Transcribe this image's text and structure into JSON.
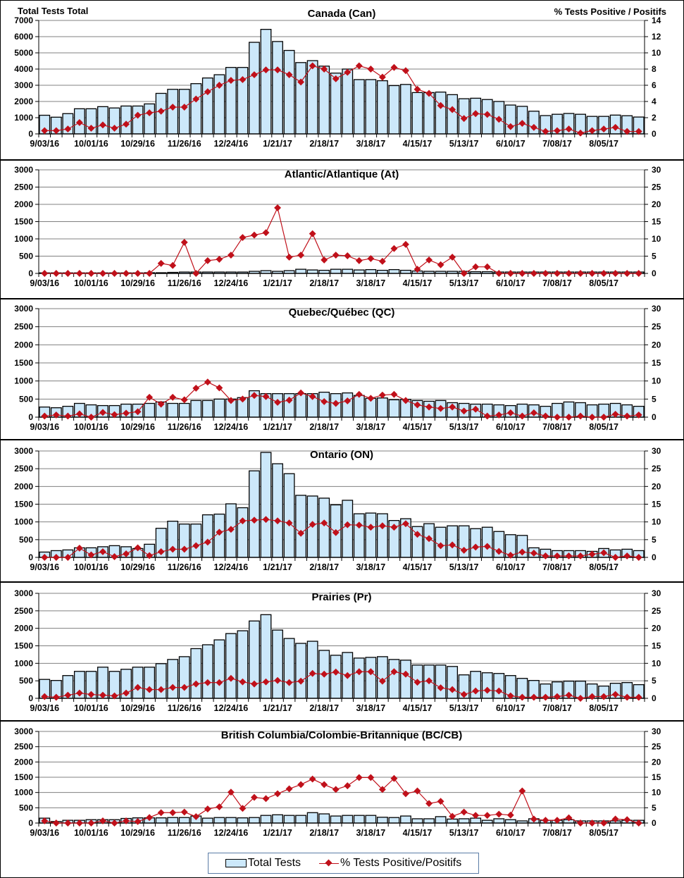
{
  "legend": {
    "bars_label": "Total Tests",
    "line_label": "% Tests Positive/Positifs"
  },
  "colors": {
    "bar_fill": "#cce8fa",
    "line": "#c0101a",
    "grid": "#808080"
  },
  "chart_data": [
    {
      "type": "bar+line",
      "title": "Canada (Can)",
      "ylabel": "Total Tests  Total",
      "y2label": "% Tests  Positive  / Positifs",
      "ylim": [
        0,
        7000
      ],
      "y2lim": [
        0,
        14
      ],
      "yticks": [
        0,
        1000,
        2000,
        3000,
        4000,
        5000,
        6000,
        7000
      ],
      "y2ticks": [
        0,
        2,
        4,
        6,
        8,
        10,
        12,
        14
      ],
      "xtick_labels": [
        "9/03/16",
        "10/01/16",
        "10/29/16",
        "11/26/16",
        "12/24/16",
        "1/21/17",
        "2/18/17",
        "3/18/17",
        "4/15/17",
        "5/13/17",
        "6/10/17",
        "7/08/17",
        "8/05/17"
      ],
      "grid": true,
      "series": [
        {
          "name": "Total Tests",
          "axis": "left",
          "values": [
            1150,
            1030,
            1250,
            1550,
            1550,
            1680,
            1600,
            1720,
            1720,
            1850,
            2500,
            2750,
            2750,
            3100,
            3450,
            3650,
            4100,
            4100,
            5650,
            6450,
            5700,
            5150,
            4400,
            4520,
            4180,
            3750,
            4000,
            3350,
            3350,
            3280,
            2980,
            3050,
            2550,
            2550,
            2580,
            2420,
            2170,
            2200,
            2120,
            2000,
            1780,
            1700,
            1400,
            1130,
            1210,
            1260,
            1210,
            1080,
            1080,
            1160,
            1120,
            1040
          ]
        },
        {
          "name": "% Tests Positive/Positifs",
          "axis": "right",
          "values": [
            0.4,
            0.4,
            0.6,
            1.4,
            0.7,
            1.1,
            0.7,
            1.2,
            2.3,
            2.6,
            2.8,
            3.3,
            3.3,
            4.3,
            5.2,
            6.0,
            6.6,
            6.7,
            7.3,
            7.9,
            7.9,
            7.3,
            6.4,
            8.4,
            8.0,
            6.8,
            7.6,
            8.4,
            8.0,
            7.0,
            8.2,
            7.8,
            5.5,
            5.0,
            3.5,
            3.0,
            1.9,
            2.5,
            2.4,
            1.8,
            0.9,
            1.3,
            0.8,
            0.3,
            0.4,
            0.6,
            0.1,
            0.4,
            0.6,
            0.8,
            0.3,
            0.3
          ]
        }
      ]
    },
    {
      "type": "bar+line",
      "title": "Atlantic/Atlantique  (At)",
      "ylim": [
        0,
        3000
      ],
      "y2lim": [
        0,
        30
      ],
      "yticks": [
        0,
        500,
        1000,
        1500,
        2000,
        2500,
        3000
      ],
      "y2ticks": [
        0,
        5,
        10,
        15,
        20,
        25,
        30
      ],
      "xtick_labels": [
        "9/03/16",
        "10/01/16",
        "10/29/16",
        "11/26/16",
        "12/24/16",
        "1/21/17",
        "2/18/17",
        "3/18/17",
        "4/15/17",
        "5/13/17",
        "6/10/17",
        "7/08/17",
        "8/05/17"
      ],
      "grid": true,
      "series": [
        {
          "name": "Total Tests",
          "axis": "left",
          "values": [
            15,
            15,
            15,
            15,
            15,
            15,
            15,
            15,
            15,
            20,
            20,
            30,
            40,
            40,
            40,
            40,
            40,
            40,
            60,
            80,
            60,
            80,
            120,
            100,
            90,
            120,
            120,
            100,
            110,
            90,
            110,
            90,
            70,
            60,
            60,
            60,
            60,
            50,
            50,
            40,
            40,
            40,
            40,
            40,
            40,
            40,
            40,
            40,
            40,
            40,
            40,
            40
          ]
        },
        {
          "name": "% Tests Positive/Positifs",
          "axis": "right",
          "values": [
            0,
            0,
            0,
            0,
            0,
            0,
            0,
            0,
            0,
            0,
            2.9,
            2.3,
            9.0,
            0,
            3.7,
            4.1,
            5.3,
            10.4,
            11.1,
            11.8,
            19.0,
            4.7,
            5.3,
            11.5,
            3.9,
            5.3,
            5.1,
            3.7,
            4.3,
            3.5,
            7.2,
            8.4,
            1.2,
            3.9,
            2.5,
            4.7,
            0,
            1.9,
            1.9,
            0,
            0,
            0,
            0,
            0,
            0,
            0,
            0,
            0,
            0,
            0,
            0,
            0
          ]
        }
      ]
    },
    {
      "type": "bar+line",
      "title": "Quebec/Québec (QC)",
      "ylim": [
        0,
        3000
      ],
      "y2lim": [
        0,
        30
      ],
      "yticks": [
        0,
        500,
        1000,
        1500,
        2000,
        2500,
        3000
      ],
      "y2ticks": [
        0,
        5,
        10,
        15,
        20,
        25,
        30
      ],
      "xtick_labels": [
        "9/03/16",
        "10/01/16",
        "10/29/16",
        "11/26/16",
        "12/24/16",
        "1/21/17",
        "2/18/17",
        "3/18/17",
        "4/15/17",
        "5/13/17",
        "6/10/17",
        "7/08/17",
        "8/05/17"
      ],
      "grid": true,
      "series": [
        {
          "name": "Total Tests",
          "axis": "left",
          "values": [
            280,
            260,
            300,
            380,
            340,
            320,
            320,
            360,
            360,
            380,
            420,
            380,
            380,
            460,
            460,
            500,
            500,
            540,
            730,
            650,
            650,
            650,
            650,
            650,
            690,
            650,
            670,
            600,
            520,
            530,
            480,
            490,
            460,
            440,
            460,
            400,
            380,
            360,
            360,
            340,
            320,
            360,
            340,
            300,
            380,
            420,
            400,
            340,
            360,
            380,
            340,
            300
          ]
        },
        {
          "name": "% Tests Positive/Positifs",
          "axis": "right",
          "values": [
            0.3,
            0.6,
            0.3,
            0.9,
            0,
            1.3,
            0.7,
            1.1,
            1.5,
            5.5,
            3.6,
            5.5,
            4.8,
            8.0,
            9.7,
            8.1,
            4.6,
            5.0,
            6.0,
            5.7,
            4.1,
            4.7,
            6.7,
            5.7,
            4.3,
            3.8,
            4.5,
            6.3,
            5.2,
            6.1,
            6.3,
            4.6,
            3.4,
            2.8,
            2.4,
            2.8,
            1.7,
            2.2,
            0.3,
            0.6,
            1.2,
            0.3,
            1.2,
            0.3,
            0,
            0,
            0.3,
            0,
            0,
            0.8,
            0.3,
            0.6
          ]
        }
      ]
    },
    {
      "type": "bar+line",
      "title": "Ontario (ON)",
      "ylim": [
        0,
        3000
      ],
      "y2lim": [
        0,
        30
      ],
      "yticks": [
        0,
        500,
        1000,
        1500,
        2000,
        2500,
        3000
      ],
      "y2ticks": [
        0,
        5,
        10,
        15,
        20,
        25,
        30
      ],
      "xtick_labels": [
        "9/03/16",
        "10/01/16",
        "10/29/16",
        "11/26/16",
        "12/24/16",
        "1/21/17",
        "2/18/17",
        "3/18/17",
        "4/15/17",
        "5/13/17",
        "6/10/17",
        "7/08/17",
        "8/05/17"
      ],
      "grid": true,
      "series": [
        {
          "name": "Total Tests",
          "axis": "left",
          "values": [
            150,
            190,
            210,
            270,
            270,
            300,
            330,
            300,
            250,
            370,
            820,
            1020,
            940,
            940,
            1200,
            1220,
            1510,
            1400,
            2440,
            2960,
            2640,
            2360,
            1750,
            1730,
            1670,
            1480,
            1610,
            1230,
            1250,
            1230,
            1040,
            1090,
            870,
            950,
            850,
            890,
            890,
            810,
            850,
            730,
            640,
            620,
            270,
            230,
            190,
            190,
            190,
            170,
            250,
            210,
            230,
            190
          ]
        },
        {
          "name": "% Tests Positive/Positifs",
          "axis": "right",
          "values": [
            0,
            0,
            0,
            2.6,
            0.7,
            1.6,
            0.2,
            1.0,
            2.7,
            0.5,
            1.6,
            2.3,
            2.3,
            3.3,
            4.3,
            7.1,
            7.9,
            10.3,
            10.5,
            10.7,
            10.3,
            9.7,
            6.8,
            9.3,
            9.7,
            7.0,
            9.2,
            9.1,
            8.5,
            8.9,
            8.5,
            9.5,
            6.5,
            5.3,
            3.3,
            3.5,
            2.0,
            2.9,
            3.1,
            1.7,
            0.6,
            1.5,
            1.2,
            0.4,
            0.4,
            0.4,
            0.4,
            0.9,
            1.3,
            0,
            0.4,
            0
          ]
        }
      ]
    },
    {
      "type": "bar+line",
      "title": "Prairies (Pr)",
      "ylim": [
        0,
        3000
      ],
      "y2lim": [
        0,
        30
      ],
      "yticks": [
        0,
        500,
        1000,
        1500,
        2000,
        2500,
        3000
      ],
      "y2ticks": [
        0,
        5,
        10,
        15,
        20,
        25,
        30
      ],
      "xtick_labels": [
        "9/03/16",
        "10/01/16",
        "10/29/16",
        "11/26/16",
        "12/24/16",
        "1/21/17",
        "2/18/17",
        "3/18/17",
        "4/15/17",
        "5/13/17",
        "6/10/17",
        "7/08/17",
        "8/05/17"
      ],
      "grid": true,
      "series": [
        {
          "name": "Total Tests",
          "axis": "left",
          "values": [
            540,
            510,
            650,
            770,
            770,
            890,
            770,
            830,
            890,
            890,
            990,
            1110,
            1190,
            1420,
            1530,
            1670,
            1850,
            1930,
            2210,
            2390,
            1950,
            1710,
            1570,
            1630,
            1370,
            1230,
            1310,
            1150,
            1170,
            1190,
            1110,
            1090,
            950,
            950,
            950,
            910,
            670,
            770,
            730,
            710,
            650,
            570,
            510,
            410,
            470,
            490,
            490,
            410,
            350,
            430,
            450,
            390
          ]
        },
        {
          "name": "% Tests Positive/Positifs",
          "axis": "right",
          "values": [
            0.5,
            0.3,
            0.9,
            1.5,
            1.1,
            0.9,
            0.7,
            1.5,
            3.1,
            2.5,
            2.5,
            3.1,
            3.1,
            4.1,
            4.5,
            4.5,
            5.7,
            4.7,
            4.1,
            4.7,
            5.1,
            4.5,
            4.9,
            7.1,
            6.9,
            7.5,
            6.5,
            7.6,
            7.6,
            4.9,
            7.6,
            6.9,
            4.6,
            5.0,
            3.0,
            2.5,
            1.1,
            2.1,
            2.3,
            2.1,
            0.7,
            0.3,
            0.3,
            0.3,
            0.5,
            0.9,
            0,
            0.5,
            0.5,
            1.1,
            0.3,
            0.3
          ]
        }
      ]
    },
    {
      "type": "bar+line",
      "title": "British Columbia/Colombie-Britannique (BC/CB)",
      "ylim": [
        0,
        3000
      ],
      "y2lim": [
        0,
        30
      ],
      "yticks": [
        0,
        500,
        1000,
        1500,
        2000,
        2500,
        3000
      ],
      "y2ticks": [
        0,
        5,
        10,
        15,
        20,
        25,
        30
      ],
      "xtick_labels": [
        "9/03/16",
        "10/01/16",
        "10/29/16",
        "11/26/16",
        "12/24/16",
        "1/21/17",
        "2/18/17",
        "3/18/17",
        "4/15/17",
        "5/13/17",
        "6/10/17",
        "7/08/17",
        "8/05/17"
      ],
      "grid": true,
      "series": [
        {
          "name": "Total Tests",
          "axis": "left",
          "values": [
            160,
            50,
            90,
            90,
            110,
            110,
            110,
            150,
            170,
            170,
            170,
            180,
            180,
            230,
            160,
            180,
            180,
            170,
            180,
            250,
            270,
            250,
            250,
            340,
            300,
            230,
            250,
            250,
            250,
            190,
            180,
            230,
            140,
            140,
            210,
            130,
            140,
            160,
            90,
            140,
            110,
            70,
            140,
            90,
            90,
            110,
            70,
            70,
            70,
            70,
            90,
            90
          ]
        },
        {
          "name": "% Tests Positive/Positifs",
          "axis": "right",
          "values": [
            0.7,
            0,
            0,
            0,
            0,
            0.7,
            0,
            0.7,
            0.5,
            1.8,
            3.4,
            3.4,
            3.6,
            2.1,
            4.6,
            5.3,
            10.1,
            4.8,
            8.4,
            8.0,
            9.6,
            11.2,
            12.6,
            14.4,
            12.6,
            11.0,
            12.2,
            14.9,
            14.9,
            11.0,
            14.6,
            9.6,
            10.5,
            6.4,
            7.1,
            2.2,
            3.6,
            2.5,
            2.5,
            2.9,
            2.6,
            10.5,
            1.3,
            0.9,
            0.9,
            1.7,
            0,
            0,
            0,
            1.3,
            1.1,
            0
          ]
        }
      ]
    }
  ]
}
